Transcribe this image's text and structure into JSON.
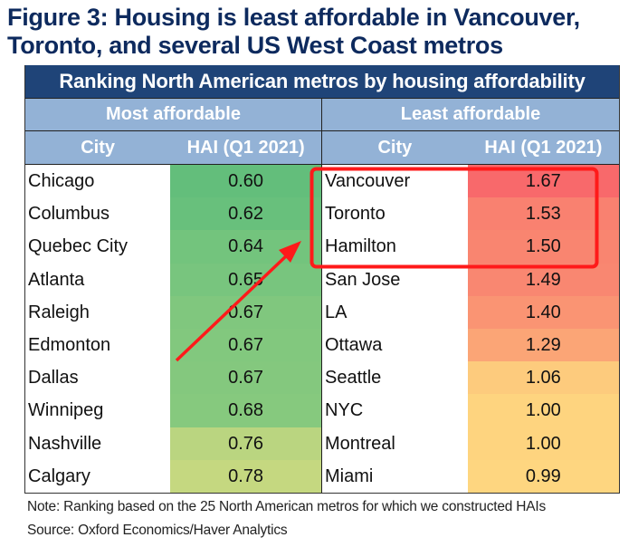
{
  "figure": {
    "title_line1": "Figure 3: Housing is least affordable in Vancouver,",
    "title_line2": "Toronto, and several US West Coast metros"
  },
  "chart_data": {
    "type": "table",
    "title": "Ranking North American metros by housing affordability",
    "groups": [
      {
        "label": "Most affordable",
        "columns": [
          "City",
          "HAI (Q1 2021)"
        ],
        "rows": [
          {
            "city": "Chicago",
            "hai": "0.60",
            "color": "#63be7b"
          },
          {
            "city": "Columbus",
            "hai": "0.62",
            "color": "#68c07c"
          },
          {
            "city": "Quebec City",
            "hai": "0.64",
            "color": "#73c47d"
          },
          {
            "city": "Atlanta",
            "hai": "0.65",
            "color": "#78c57e"
          },
          {
            "city": "Raleigh",
            "hai": "0.67",
            "color": "#80c77e"
          },
          {
            "city": "Edmonton",
            "hai": "0.67",
            "color": "#82c87e"
          },
          {
            "city": "Dallas",
            "hai": "0.67",
            "color": "#84c87e"
          },
          {
            "city": "Winnipeg",
            "hai": "0.68",
            "color": "#86c97e"
          },
          {
            "city": "Nashville",
            "hai": "0.76",
            "color": "#bad580"
          },
          {
            "city": "Calgary",
            "hai": "0.78",
            "color": "#c5d880"
          }
        ]
      },
      {
        "label": "Least affordable",
        "columns": [
          "City",
          "HAI (Q1 2021)"
        ],
        "rows": [
          {
            "city": "Vancouver",
            "hai": "1.67",
            "color": "#f8696b"
          },
          {
            "city": "Toronto",
            "hai": "1.53",
            "color": "#f98170"
          },
          {
            "city": "Hamilton",
            "hai": "1.50",
            "color": "#f98570"
          },
          {
            "city": "San Jose",
            "hai": "1.49",
            "color": "#f98771"
          },
          {
            "city": "LA",
            "hai": "1.40",
            "color": "#fa9473"
          },
          {
            "city": "Ottawa",
            "hai": "1.29",
            "color": "#fba576"
          },
          {
            "city": "Seattle",
            "hai": "1.06",
            "color": "#fdcb7d"
          },
          {
            "city": "NYC",
            "hai": "1.00",
            "color": "#fed47f"
          },
          {
            "city": "Montreal",
            "hai": "1.00",
            "color": "#fed47f"
          },
          {
            "city": "Miami",
            "hai": "0.99",
            "color": "#fed680"
          }
        ]
      }
    ],
    "annotations": [
      "red box highlighting Vancouver, Toronto, Hamilton",
      "red arrow pointing toward highlighted box"
    ]
  },
  "note": "Note: Ranking based on the 25 North American metros for which we constructed HAIs",
  "source": "Source: Oxford Economics/Haver Analytics",
  "colors": {
    "title": "#0d2a5e",
    "banner": "#1f4478",
    "subheader": "#93b2d6",
    "annotation": "#ff1a1a"
  }
}
